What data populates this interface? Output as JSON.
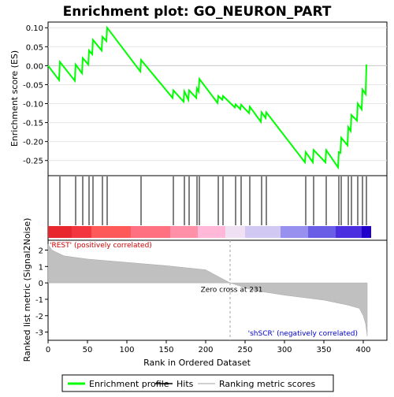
{
  "chart_data": {
    "type": "line",
    "title": "Enrichment plot: GO_NEURON_PART",
    "xlabel": "Rank in Ordered Dataset",
    "xlim": [
      0,
      430
    ],
    "x_ticks": [
      "0",
      "50",
      "100",
      "150",
      "200",
      "250",
      "300",
      "350",
      "400"
    ],
    "x_tick_values": [
      0,
      50,
      100,
      150,
      200,
      250,
      300,
      350,
      400
    ],
    "es_panel": {
      "ylabel": "Enrichment score (ES)",
      "ylim": [
        -0.29,
        0.115
      ],
      "y_ticks": [
        "0.10",
        "0.05",
        "0.00",
        "-0.05",
        "-0.10",
        "-0.15",
        "-0.20",
        "-0.25"
      ],
      "y_tick_values": [
        0.1,
        0.05,
        0.0,
        -0.05,
        -0.1,
        -0.15,
        -0.2,
        -0.25
      ],
      "series_name": "Enrichment profile",
      "series_color": "#00ff00",
      "x": [
        0,
        14,
        15,
        34,
        35,
        43,
        44,
        51,
        52,
        56,
        57,
        68,
        69,
        74,
        75,
        117,
        118,
        158,
        159,
        172,
        173,
        178,
        179,
        188,
        189,
        191,
        192,
        215,
        216,
        221,
        222,
        237,
        238,
        244,
        245,
        255,
        256,
        270,
        271,
        276,
        277,
        326,
        327,
        336,
        337,
        352,
        353,
        368,
        369,
        371,
        372,
        380,
        381,
        384,
        385,
        392,
        393,
        398,
        399,
        403,
        404
      ],
      "y": [
        0.0,
        -0.038,
        0.01,
        -0.04,
        0.003,
        -0.02,
        0.02,
        0.003,
        0.04,
        0.03,
        0.068,
        0.04,
        0.076,
        0.065,
        0.1,
        -0.015,
        0.015,
        -0.085,
        -0.065,
        -0.095,
        -0.068,
        -0.09,
        -0.065,
        -0.085,
        -0.06,
        -0.068,
        -0.035,
        -0.098,
        -0.08,
        -0.09,
        -0.08,
        -0.11,
        -0.102,
        -0.115,
        -0.103,
        -0.125,
        -0.108,
        -0.148,
        -0.123,
        -0.138,
        -0.123,
        -0.255,
        -0.228,
        -0.255,
        -0.222,
        -0.255,
        -0.223,
        -0.268,
        -0.228,
        -0.23,
        -0.19,
        -0.21,
        -0.162,
        -0.172,
        -0.13,
        -0.145,
        -0.1,
        -0.115,
        -0.063,
        -0.075,
        0.003
      ]
    },
    "hits": {
      "name": "Hits",
      "positions": [
        15,
        35,
        44,
        52,
        57,
        69,
        75,
        118,
        159,
        173,
        179,
        189,
        192,
        216,
        222,
        238,
        245,
        256,
        271,
        277,
        327,
        337,
        353,
        369,
        372,
        381,
        385,
        393,
        399,
        404
      ]
    },
    "heatmap_bar": {
      "segments": [
        {
          "from": 0,
          "to": 30,
          "color": "#e8262e"
        },
        {
          "from": 30,
          "to": 55,
          "color": "#f2353f"
        },
        {
          "from": 55,
          "to": 105,
          "color": "#ff5a5a"
        },
        {
          "from": 105,
          "to": 155,
          "color": "#ff7080"
        },
        {
          "from": 155,
          "to": 190,
          "color": "#ff90a8"
        },
        {
          "from": 190,
          "to": 225,
          "color": "#ffb8d8"
        },
        {
          "from": 225,
          "to": 250,
          "color": "#f0e0f4"
        },
        {
          "from": 250,
          "to": 295,
          "color": "#d2c8f4"
        },
        {
          "from": 295,
          "to": 330,
          "color": "#9890ee"
        },
        {
          "from": 330,
          "to": 365,
          "color": "#6a5de6"
        },
        {
          "from": 365,
          "to": 398,
          "color": "#4a2ee0"
        },
        {
          "from": 398,
          "to": 410,
          "color": "#2200cc"
        }
      ]
    },
    "metric_panel": {
      "ylabel": "Ranked list metric (Signal2Noise)",
      "ylim": [
        -3.5,
        2.6
      ],
      "y_ticks": [
        "2",
        "1",
        "0",
        "-1",
        "-2",
        "-3"
      ],
      "y_tick_values": [
        2,
        1,
        0,
        -1,
        -2,
        -3
      ],
      "series_name": "Ranking metric scores",
      "fill_color": "#c0c0c0",
      "x": [
        0,
        5,
        20,
        50,
        100,
        150,
        200,
        231,
        260,
        300,
        350,
        380,
        395,
        400,
        403,
        405,
        405
      ],
      "y": [
        2.35,
        2.0,
        1.65,
        1.45,
        1.25,
        1.05,
        0.8,
        0.0,
        -0.45,
        -0.75,
        -1.05,
        -1.35,
        -1.55,
        -2.0,
        -2.5,
        -3.25,
        0.0
      ],
      "zero_cross_label": "Zero cross at 231",
      "zero_cross_x": 231,
      "positive_label": "'REST' (positively correlated)",
      "negative_label": "'shSCR' (negatively correlated)"
    },
    "legend": {
      "placement": "bottom",
      "items": [
        {
          "name": "Enrichment profile",
          "color": "#00ff00"
        },
        {
          "name": "Hits",
          "color": "#000000"
        },
        {
          "name": "Ranking metric scores",
          "color": "#c0c0c0"
        }
      ]
    }
  }
}
